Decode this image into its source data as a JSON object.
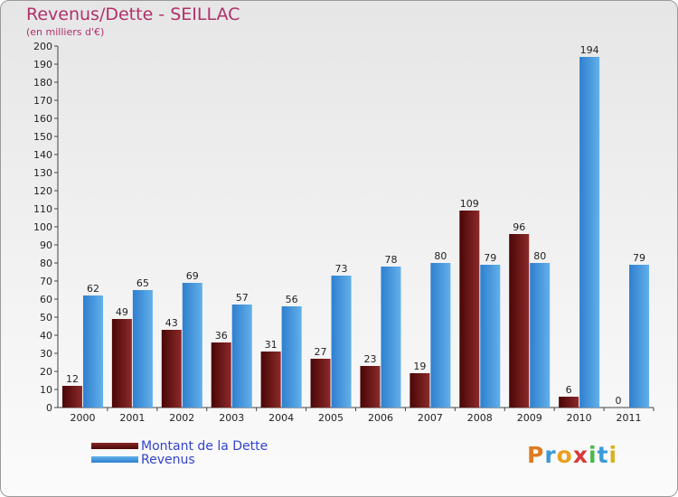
{
  "chart_data": {
    "type": "bar",
    "title": "Revenus/Dette - SEILLAC",
    "subtitle": "(en milliers d'€)",
    "categories": [
      "2000",
      "2001",
      "2002",
      "2003",
      "2004",
      "2005",
      "2006",
      "2007",
      "2008",
      "2009",
      "2010",
      "2011"
    ],
    "series": [
      {
        "name": "Montant de la Dette",
        "values": [
          12,
          49,
          43,
          36,
          31,
          27,
          23,
          19,
          109,
          96,
          6,
          0
        ]
      },
      {
        "name": "Revenus",
        "values": [
          62,
          65,
          69,
          57,
          56,
          73,
          78,
          80,
          79,
          80,
          194,
          79
        ]
      }
    ],
    "ylim": [
      0,
      200
    ],
    "yticks": [
      0,
      10,
      20,
      30,
      40,
      50,
      60,
      70,
      80,
      90,
      100,
      110,
      120,
      130,
      140,
      150,
      160,
      170,
      180,
      190,
      200
    ],
    "legend_position": "bottom-left",
    "grid": false
  },
  "colors": {
    "dette_dark": "#5a0a0a",
    "dette_light": "#8a2a2a",
    "revenus_dark": "#3a8ad8",
    "revenus_light": "#5aaae8",
    "title": "#b0306a"
  },
  "logo": {
    "letters": [
      "P",
      "r",
      "o",
      "x",
      "i",
      "t",
      "i"
    ]
  }
}
